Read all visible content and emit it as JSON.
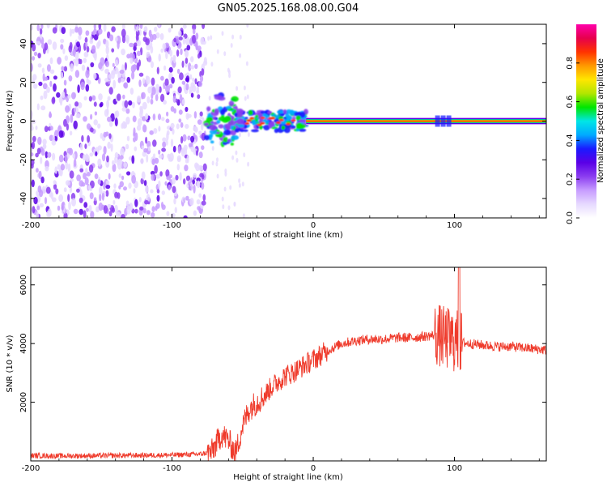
{
  "figure": {
    "title": "GN05.2025.168.08.00.G04"
  },
  "colors": {
    "snr_line": "#ef3b2c",
    "colormap": [
      "#ffffff",
      "#e6d9ff",
      "#c79cff",
      "#8b3df0",
      "#5a00e6",
      "#1a1aff",
      "#00aaff",
      "#00e6e6",
      "#00e600",
      "#b3e600",
      "#ffe600",
      "#ff9900",
      "#ff3300",
      "#e6004d",
      "#ff00aa"
    ]
  },
  "chart_data": [
    {
      "type": "heatmap",
      "title": "GN05.2025.168.08.00.G04",
      "xlabel": "Height of straight line (km)",
      "ylabel": "Frequency (Hz)",
      "xlim": [
        -200,
        165
      ],
      "ylim": [
        -50,
        50
      ],
      "x_ticks": [
        "-200",
        "-100",
        "0",
        "100"
      ],
      "y_ticks": [
        "-40",
        "-20",
        "0",
        "20",
        "40"
      ],
      "colorbar": {
        "label": "Normalized spectral amplitude",
        "range": [
          0,
          1
        ],
        "ticks": [
          "0.0",
          "0.2",
          "0.4",
          "0.6",
          "0.8"
        ]
      },
      "features": [
        {
          "name": "noise",
          "x_range": [
            -200,
            -76
          ],
          "y_range": [
            -50,
            50
          ],
          "amplitude": 0.1
        },
        {
          "name": "scintillation",
          "x_range": [
            -76,
            -5
          ],
          "frequency_hz": 0,
          "amplitude": 0.5
        },
        {
          "name": "carrier",
          "x_range": [
            -5,
            165
          ],
          "frequency_hz": 0,
          "amplitude": 1.0
        }
      ]
    },
    {
      "type": "line",
      "xlabel": "Height of straight line (km)",
      "ylabel": "SNR (10 * v/v)",
      "xlim": [
        -200,
        165
      ],
      "ylim": [
        0,
        6600
      ],
      "x_ticks": [
        "-200",
        "-100",
        "0",
        "100"
      ],
      "y_ticks": [
        "2000",
        "4000",
        "6000"
      ],
      "series": [
        {
          "x": [
            -200,
            -180,
            -160,
            -140,
            -120,
            -100,
            -80,
            -72,
            -65,
            -60,
            -55,
            -50,
            -45,
            -40,
            -35,
            -30,
            -25,
            -20,
            -15,
            -10,
            -5,
            0,
            10,
            20,
            30,
            40,
            50,
            60,
            70,
            80,
            88,
            92,
            96,
            100,
            104,
            110,
            120,
            130,
            140,
            150,
            160,
            165
          ],
          "y": [
            180,
            170,
            175,
            180,
            190,
            200,
            230,
            300,
            900,
            700,
            250,
            1200,
            1800,
            2000,
            2200,
            2500,
            2700,
            2900,
            3000,
            3150,
            3300,
            3450,
            3750,
            4000,
            4100,
            4150,
            4150,
            4200,
            4200,
            4250,
            4300,
            4200,
            4150,
            4100,
            4050,
            4000,
            3950,
            3900,
            3900,
            3850,
            3800,
            3780
          ]
        }
      ]
    }
  ]
}
